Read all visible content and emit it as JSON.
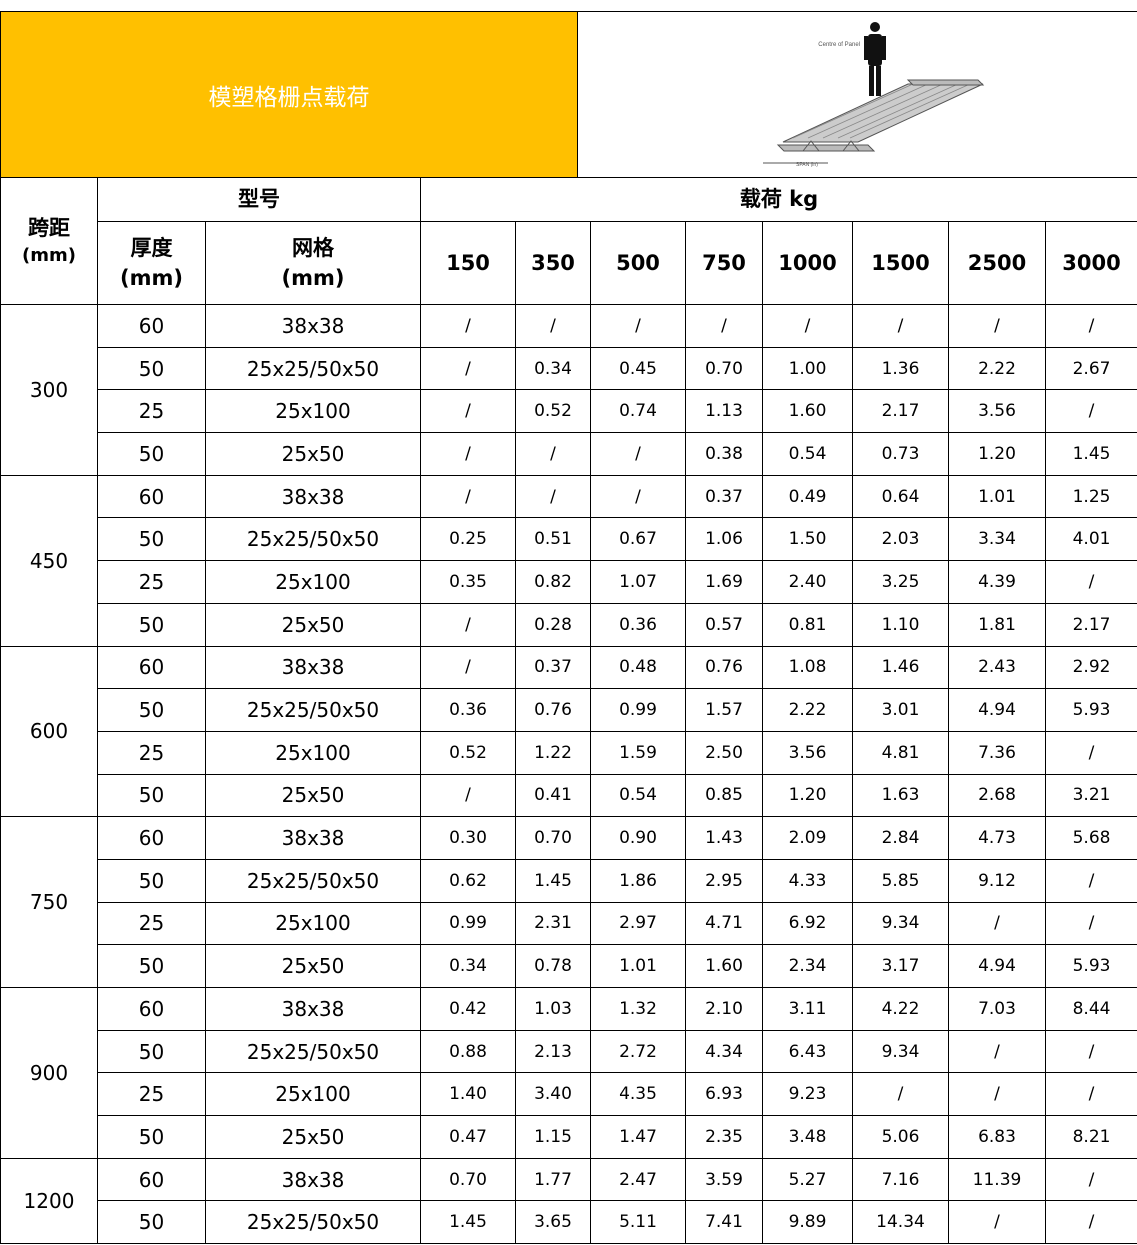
{
  "header": {
    "title": "模塑格栅点载荷",
    "image_labels": {
      "centre": "Centre of Panel",
      "span": "SPAN (in)"
    }
  },
  "table": {
    "columns": {
      "span": [
        "跨距",
        "(mm)"
      ],
      "model": "型号",
      "thickness": [
        "厚度",
        "(mm)"
      ],
      "mesh": [
        "网格",
        "(mm)"
      ],
      "load": "载荷 kg",
      "loads": [
        "150",
        "350",
        "500",
        "750",
        "1000",
        "1500",
        "2500",
        "3000"
      ]
    },
    "groups": [
      {
        "span": "300",
        "rows": [
          [
            "60",
            "38x38",
            "/",
            "/",
            "/",
            "/",
            "/",
            "/",
            "/",
            "/"
          ],
          [
            "50",
            "25x25/50x50",
            "/",
            "0.34",
            "0.45",
            "0.70",
            "1.00",
            "1.36",
            "2.22",
            "2.67"
          ],
          [
            "25",
            "25x100",
            "/",
            "0.52",
            "0.74",
            "1.13",
            "1.60",
            "2.17",
            "3.56",
            "/"
          ],
          [
            "50",
            "25x50",
            "/",
            "/",
            "/",
            "0.38",
            "0.54",
            "0.73",
            "1.20",
            "1.45"
          ]
        ]
      },
      {
        "span": "450",
        "rows": [
          [
            "60",
            "38x38",
            "/",
            "/",
            "/",
            "0.37",
            "0.49",
            "0.64",
            "1.01",
            "1.25"
          ],
          [
            "50",
            "25x25/50x50",
            "0.25",
            "0.51",
            "0.67",
            "1.06",
            "1.50",
            "2.03",
            "3.34",
            "4.01"
          ],
          [
            "25",
            "25x100",
            "0.35",
            "0.82",
            "1.07",
            "1.69",
            "2.40",
            "3.25",
            "4.39",
            "/"
          ],
          [
            "50",
            "25x50",
            "/",
            "0.28",
            "0.36",
            "0.57",
            "0.81",
            "1.10",
            "1.81",
            "2.17"
          ]
        ]
      },
      {
        "span": "600",
        "rows": [
          [
            "60",
            "38x38",
            "/",
            "0.37",
            "0.48",
            "0.76",
            "1.08",
            "1.46",
            "2.43",
            "2.92"
          ],
          [
            "50",
            "25x25/50x50",
            "0.36",
            "0.76",
            "0.99",
            "1.57",
            "2.22",
            "3.01",
            "4.94",
            "5.93"
          ],
          [
            "25",
            "25x100",
            "0.52",
            "1.22",
            "1.59",
            "2.50",
            "3.56",
            "4.81",
            "7.36",
            "/"
          ],
          [
            "50",
            "25x50",
            "/",
            "0.41",
            "0.54",
            "0.85",
            "1.20",
            "1.63",
            "2.68",
            "3.21"
          ]
        ]
      },
      {
        "span": "750",
        "rows": [
          [
            "60",
            "38x38",
            "0.30",
            "0.70",
            "0.90",
            "1.43",
            "2.09",
            "2.84",
            "4.73",
            "5.68"
          ],
          [
            "50",
            "25x25/50x50",
            "0.62",
            "1.45",
            "1.86",
            "2.95",
            "4.33",
            "5.85",
            "9.12",
            "/"
          ],
          [
            "25",
            "25x100",
            "0.99",
            "2.31",
            "2.97",
            "4.71",
            "6.92",
            "9.34",
            "/",
            "/"
          ],
          [
            "50",
            "25x50",
            "0.34",
            "0.78",
            "1.01",
            "1.60",
            "2.34",
            "3.17",
            "4.94",
            "5.93"
          ]
        ]
      },
      {
        "span": "900",
        "rows": [
          [
            "60",
            "38x38",
            "0.42",
            "1.03",
            "1.32",
            "2.10",
            "3.11",
            "4.22",
            "7.03",
            "8.44"
          ],
          [
            "50",
            "25x25/50x50",
            "0.88",
            "2.13",
            "2.72",
            "4.34",
            "6.43",
            "9.34",
            "/",
            "/"
          ],
          [
            "25",
            "25x100",
            "1.40",
            "3.40",
            "4.35",
            "6.93",
            "9.23",
            "/",
            "/",
            "/"
          ],
          [
            "50",
            "25x50",
            "0.47",
            "1.15",
            "1.47",
            "2.35",
            "3.48",
            "5.06",
            "6.83",
            "8.21"
          ]
        ]
      },
      {
        "span": "1200",
        "rows": [
          [
            "60",
            "38x38",
            "0.70",
            "1.77",
            "2.47",
            "3.59",
            "5.27",
            "7.16",
            "11.39",
            "/"
          ],
          [
            "50",
            "25x25/50x50",
            "1.45",
            "3.65",
            "5.11",
            "7.41",
            "9.89",
            "14.34",
            "/",
            "/"
          ]
        ]
      }
    ]
  }
}
